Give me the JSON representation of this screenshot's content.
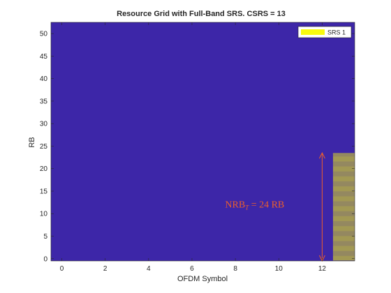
{
  "chart_data": {
    "type": "heatmap",
    "title": "Resource Grid with Full-Band SRS. CSRS = 13",
    "xlabel": "OFDM Symbol",
    "ylabel": "RB",
    "xlim": [
      -0.5,
      13.5
    ],
    "ylim": [
      -0.5,
      52.5
    ],
    "xticks": [
      0,
      2,
      4,
      6,
      8,
      10,
      12
    ],
    "yticks": [
      0,
      5,
      10,
      15,
      20,
      25,
      30,
      35,
      40,
      45,
      50
    ],
    "background_color": "#3d26a8",
    "srs_color": "#f9fb0e",
    "srs_symbol": 13,
    "srs_subcarrier_pattern": "every other subcarrier (comb-2)",
    "srs_rb_range": [
      0,
      24
    ],
    "legend": {
      "label": "SRS 1",
      "location": "top-right"
    },
    "annotation": {
      "text_main": "NRB",
      "text_sub": "T",
      "text_rest": " = 24 RB",
      "color": "#ed5f2b",
      "x": 12,
      "y_range": [
        0,
        24
      ]
    }
  }
}
